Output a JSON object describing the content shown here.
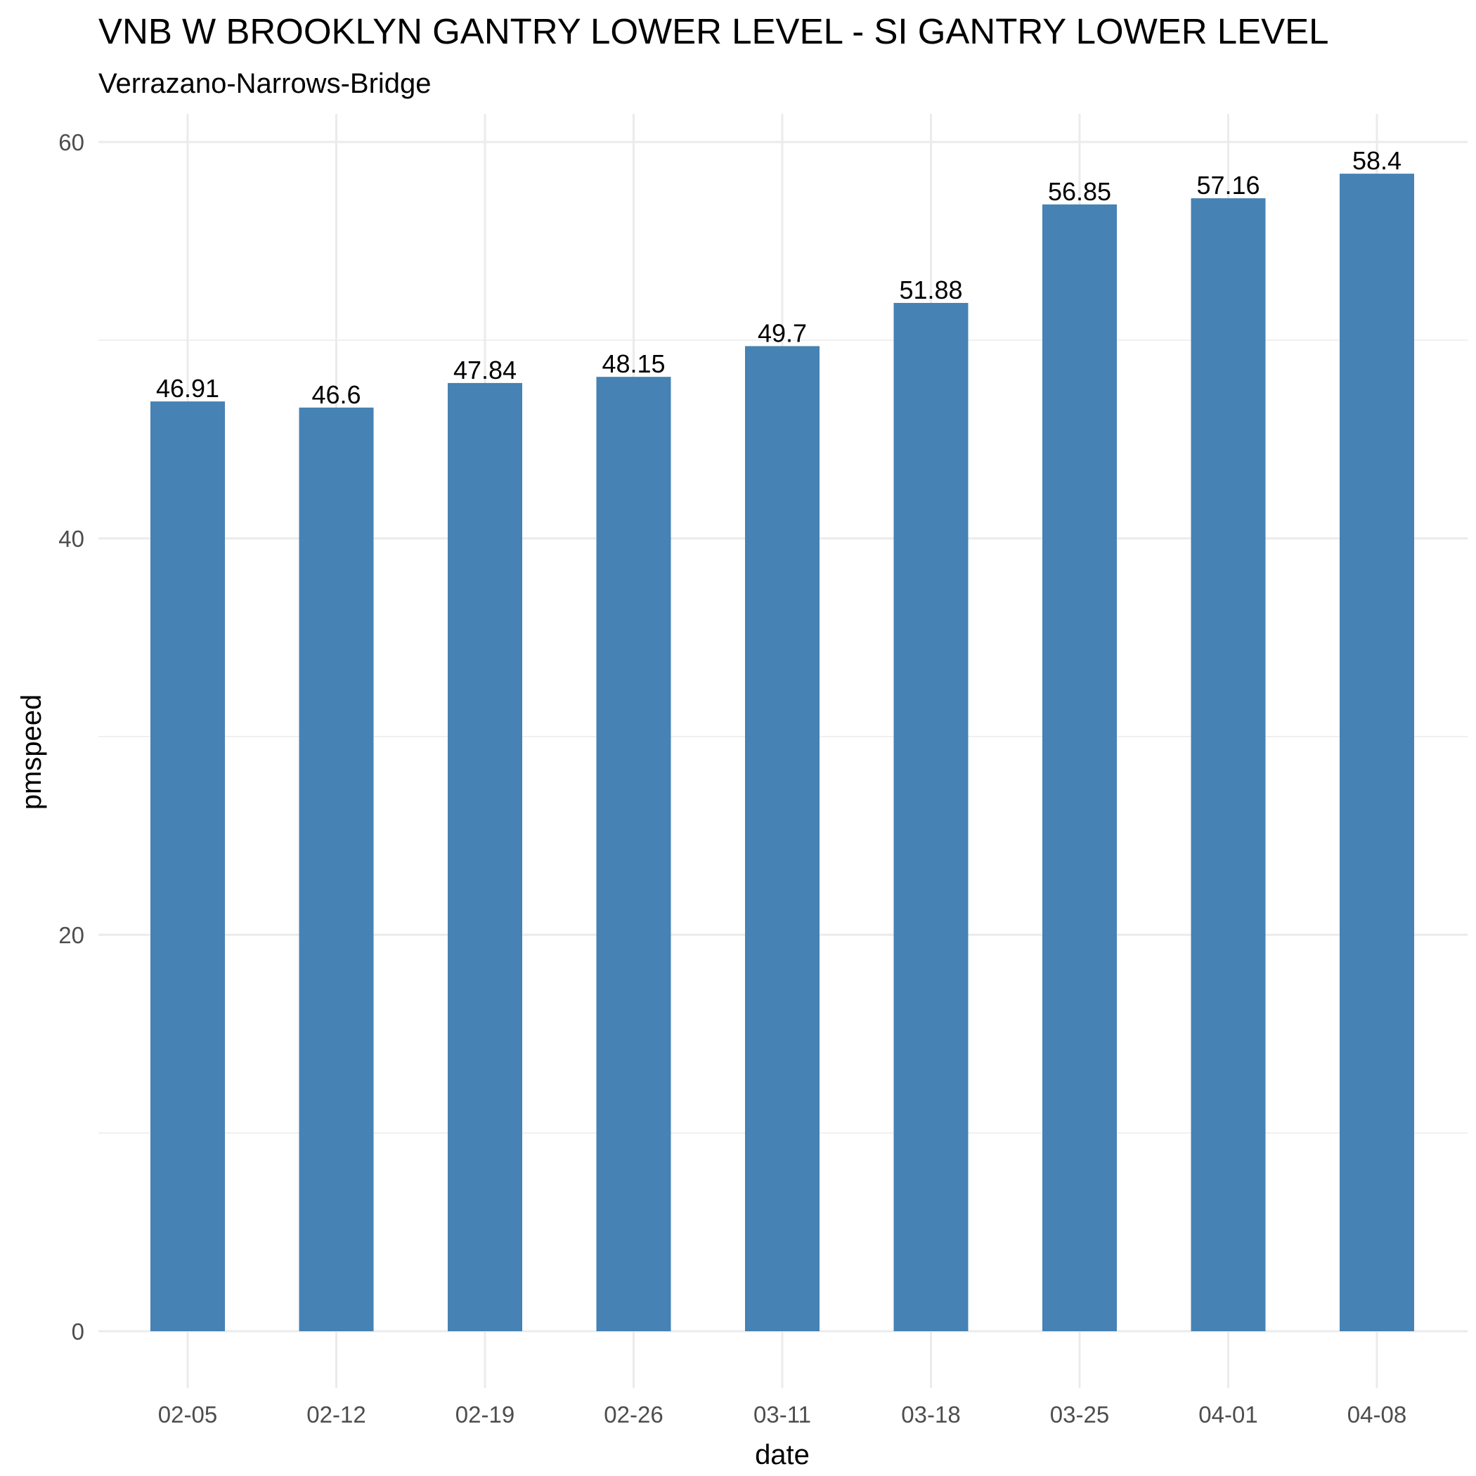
{
  "chart_data": {
    "type": "bar",
    "title": "VNB W BROOKLYN GANTRY LOWER LEVEL - SI GANTRY LOWER LEVEL",
    "subtitle": "Verrazano-Narrows-Bridge",
    "xlabel": "date",
    "ylabel": "pmspeed",
    "categories": [
      "02-05",
      "02-12",
      "02-19",
      "02-26",
      "03-11",
      "03-18",
      "03-25",
      "04-01",
      "04-08"
    ],
    "values": [
      46.91,
      46.6,
      47.84,
      48.15,
      49.7,
      51.88,
      56.85,
      57.16,
      58.4
    ],
    "data_labels": [
      "46.91",
      "46.6",
      "47.84",
      "48.15",
      "49.7",
      "51.88",
      "56.85",
      "57.16",
      "58.4"
    ],
    "yticks": [
      0,
      20,
      40,
      60
    ],
    "ylim": [
      0,
      60
    ],
    "grid": true,
    "legend": "none",
    "bar_color": "#4682b4"
  }
}
